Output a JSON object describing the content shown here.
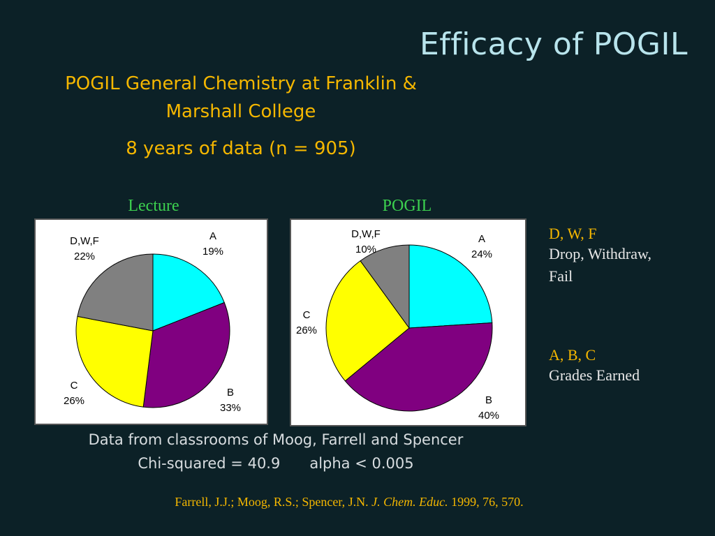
{
  "slide": {
    "title": "Efficacy of POGIL",
    "subtitle_line1": "POGIL General Chemistry at Franklin &",
    "subtitle_line2": "Marshall College",
    "years": "8 years of data (n = 905)",
    "data_source": "Data from classrooms of Moog, Farrell and Spencer",
    "chi_squared": "Chi-squared = 40.9",
    "alpha": "alpha < 0.005",
    "citation": {
      "authors": "Farrell, J.J.; Moog, R.S.; Spencer, J.N.",
      "journal": "J. Chem. Educ.",
      "details": "1999, 76, 570."
    }
  },
  "legend": {
    "dwf_head": "D, W, F",
    "dwf_line1": "Drop, Withdraw,",
    "dwf_line2": "Fail",
    "abc_head": "A, B, C",
    "abc_line1": "Grades Earned"
  },
  "colors": {
    "A": "#00ffff",
    "B": "#800080",
    "C": "#ffff00",
    "D,W,F": "#808080"
  },
  "chart_data": [
    {
      "type": "pie",
      "title": "Lecture",
      "slices": [
        {
          "label": "A",
          "value": 19,
          "display": "19%"
        },
        {
          "label": "B",
          "value": 33,
          "display": "33%"
        },
        {
          "label": "C",
          "value": 26,
          "display": "26%"
        },
        {
          "label": "D,W,F",
          "value": 22,
          "display": "22%"
        }
      ]
    },
    {
      "type": "pie",
      "title": "POGIL",
      "slices": [
        {
          "label": "A",
          "value": 24,
          "display": "24%"
        },
        {
          "label": "B",
          "value": 40,
          "display": "40%"
        },
        {
          "label": "C",
          "value": 26,
          "display": "26%"
        },
        {
          "label": "D,W,F",
          "value": 10,
          "display": "10%"
        }
      ]
    }
  ]
}
